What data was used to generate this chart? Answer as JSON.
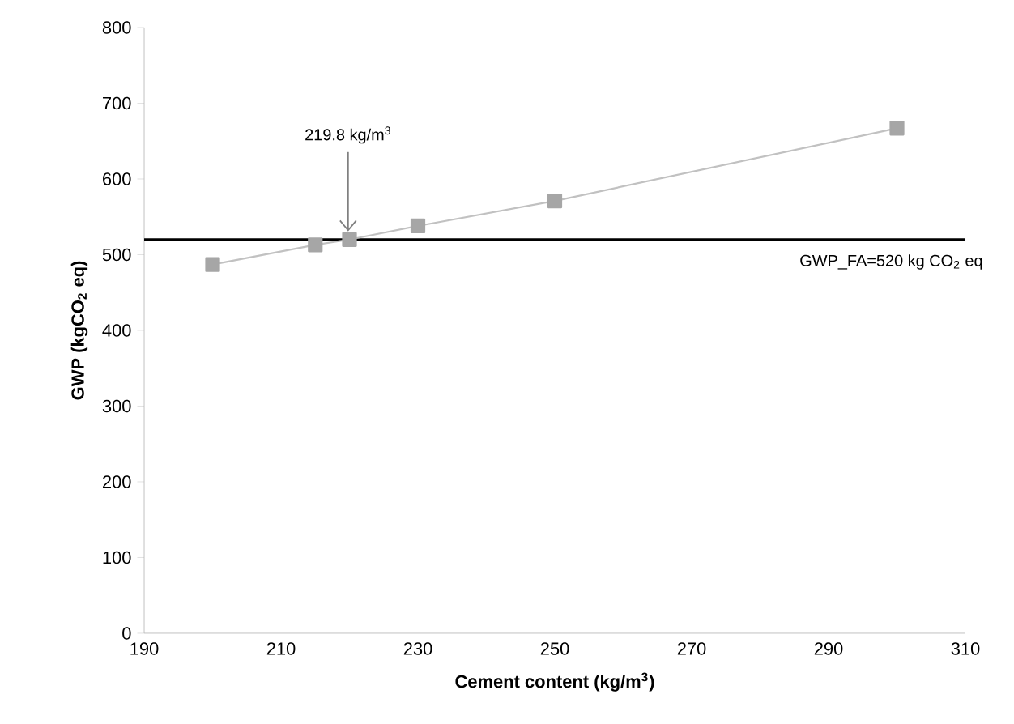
{
  "chart_data": {
    "type": "line",
    "xlabel": "Cement content (kg/m$^{3}$)",
    "ylabel": "GWP (kgCO$_{2}$ eq)",
    "x": [
      200,
      215,
      220,
      230,
      250,
      300
    ],
    "series": [
      {
        "color": "#a6a6a6",
        "values": [
          487,
          513,
          520,
          538,
          571,
          667
        ]
      }
    ],
    "xlim": [
      190,
      310
    ],
    "xticks": [
      190,
      210,
      230,
      250,
      270,
      290,
      310
    ],
    "ylim": [
      0,
      800
    ],
    "yticks": [
      0,
      100,
      200,
      300,
      400,
      500,
      600,
      700,
      800
    ],
    "ref_lines": [
      {
        "axis": "y",
        "value": 520,
        "label": "GWP_FA=520 kg CO$_{2}$ eq",
        "color": "#000000"
      }
    ],
    "annotations": [
      {
        "text": "219.8 kg/m$^{3}$",
        "x": 219.8,
        "y": 520
      }
    ],
    "marker": "square",
    "line_style": "solid"
  }
}
